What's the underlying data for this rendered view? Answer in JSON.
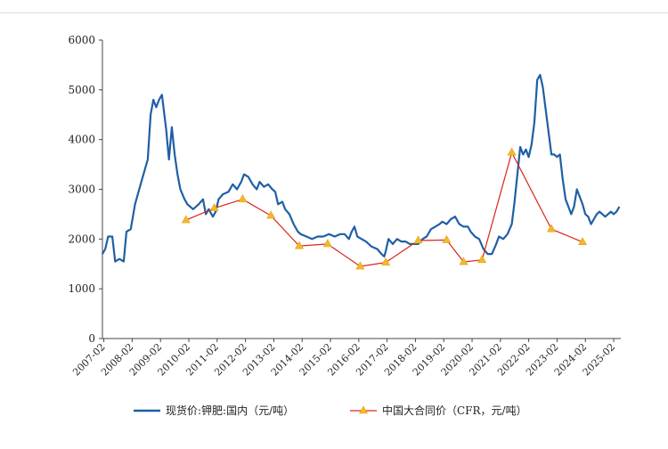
{
  "figure": {
    "title": ""
  },
  "chart_data": {
    "type": "line",
    "title": "",
    "xlabel": "",
    "ylabel": "",
    "ylim": [
      0,
      6000
    ],
    "yticks": [
      0,
      1000,
      2000,
      3000,
      4000,
      5000,
      6000
    ],
    "xtick_labels": [
      "2007-02",
      "2008-02",
      "2009-02",
      "2010-02",
      "2011-02",
      "2012-02",
      "2013-02",
      "2014-02",
      "2015-02",
      "2016-02",
      "2017-02",
      "2018-02",
      "2019-02",
      "2020-02",
      "2021-02",
      "2022-02",
      "2023-02",
      "2024-02",
      "2025-02"
    ],
    "grid": false,
    "legend_position": "bottom",
    "series": [
      {
        "name": "现货价:钾肥:国内（元/吨）",
        "color": "#1f5fa6",
        "marker": "none",
        "points": [
          [
            2007.0,
            1700
          ],
          [
            2007.1,
            1800
          ],
          [
            2007.2,
            2050
          ],
          [
            2007.35,
            2050
          ],
          [
            2007.45,
            1550
          ],
          [
            2007.6,
            1600
          ],
          [
            2007.75,
            1550
          ],
          [
            2007.85,
            2150
          ],
          [
            2008.0,
            2200
          ],
          [
            2008.15,
            2700
          ],
          [
            2008.3,
            3000
          ],
          [
            2008.45,
            3300
          ],
          [
            2008.6,
            3600
          ],
          [
            2008.7,
            4500
          ],
          [
            2008.8,
            4800
          ],
          [
            2008.9,
            4650
          ],
          [
            2009.0,
            4800
          ],
          [
            2009.1,
            4900
          ],
          [
            2009.25,
            4200
          ],
          [
            2009.35,
            3600
          ],
          [
            2009.45,
            4250
          ],
          [
            2009.55,
            3700
          ],
          [
            2009.65,
            3300
          ],
          [
            2009.75,
            3000
          ],
          [
            2009.9,
            2800
          ],
          [
            2010.0,
            2700
          ],
          [
            2010.2,
            2600
          ],
          [
            2010.4,
            2700
          ],
          [
            2010.55,
            2800
          ],
          [
            2010.65,
            2500
          ],
          [
            2010.75,
            2600
          ],
          [
            2010.9,
            2450
          ],
          [
            2011.0,
            2550
          ],
          [
            2011.1,
            2800
          ],
          [
            2011.25,
            2900
          ],
          [
            2011.45,
            2950
          ],
          [
            2011.6,
            3100
          ],
          [
            2011.75,
            3000
          ],
          [
            2011.9,
            3150
          ],
          [
            2012.0,
            3300
          ],
          [
            2012.15,
            3250
          ],
          [
            2012.3,
            3100
          ],
          [
            2012.45,
            3000
          ],
          [
            2012.55,
            3150
          ],
          [
            2012.7,
            3050
          ],
          [
            2012.85,
            3100
          ],
          [
            2013.0,
            3000
          ],
          [
            2013.1,
            2950
          ],
          [
            2013.2,
            2700
          ],
          [
            2013.35,
            2750
          ],
          [
            2013.45,
            2600
          ],
          [
            2013.6,
            2500
          ],
          [
            2013.75,
            2300
          ],
          [
            2013.9,
            2150
          ],
          [
            2014.0,
            2100
          ],
          [
            2014.2,
            2050
          ],
          [
            2014.4,
            2000
          ],
          [
            2014.6,
            2050
          ],
          [
            2014.8,
            2050
          ],
          [
            2015.0,
            2100
          ],
          [
            2015.2,
            2050
          ],
          [
            2015.4,
            2100
          ],
          [
            2015.55,
            2100
          ],
          [
            2015.7,
            2000
          ],
          [
            2015.8,
            2150
          ],
          [
            2015.9,
            2250
          ],
          [
            2016.0,
            2050
          ],
          [
            2016.15,
            2000
          ],
          [
            2016.3,
            1950
          ],
          [
            2016.5,
            1850
          ],
          [
            2016.7,
            1800
          ],
          [
            2016.85,
            1700
          ],
          [
            2016.95,
            1650
          ],
          [
            2017.0,
            1750
          ],
          [
            2017.1,
            2000
          ],
          [
            2017.25,
            1900
          ],
          [
            2017.4,
            2000
          ],
          [
            2017.55,
            1950
          ],
          [
            2017.7,
            1950
          ],
          [
            2017.85,
            1900
          ],
          [
            2018.0,
            1900
          ],
          [
            2018.15,
            1900
          ],
          [
            2018.3,
            2000
          ],
          [
            2018.45,
            2050
          ],
          [
            2018.6,
            2200
          ],
          [
            2018.75,
            2250
          ],
          [
            2018.9,
            2300
          ],
          [
            2019.0,
            2350
          ],
          [
            2019.15,
            2300
          ],
          [
            2019.3,
            2400
          ],
          [
            2019.45,
            2450
          ],
          [
            2019.6,
            2300
          ],
          [
            2019.75,
            2250
          ],
          [
            2019.9,
            2250
          ],
          [
            2020.0,
            2150
          ],
          [
            2020.15,
            2050
          ],
          [
            2020.3,
            2000
          ],
          [
            2020.45,
            1800
          ],
          [
            2020.6,
            1700
          ],
          [
            2020.75,
            1700
          ],
          [
            2020.9,
            1900
          ],
          [
            2021.0,
            2050
          ],
          [
            2021.15,
            2000
          ],
          [
            2021.3,
            2100
          ],
          [
            2021.45,
            2300
          ],
          [
            2021.55,
            2750
          ],
          [
            2021.65,
            3300
          ],
          [
            2021.75,
            3850
          ],
          [
            2021.85,
            3700
          ],
          [
            2021.95,
            3800
          ],
          [
            2022.05,
            3650
          ],
          [
            2022.15,
            3900
          ],
          [
            2022.25,
            4350
          ],
          [
            2022.35,
            5200
          ],
          [
            2022.45,
            5300
          ],
          [
            2022.55,
            5050
          ],
          [
            2022.65,
            4600
          ],
          [
            2022.75,
            4150
          ],
          [
            2022.85,
            3700
          ],
          [
            2022.95,
            3700
          ],
          [
            2023.05,
            3650
          ],
          [
            2023.15,
            3700
          ],
          [
            2023.25,
            3200
          ],
          [
            2023.35,
            2800
          ],
          [
            2023.45,
            2650
          ],
          [
            2023.55,
            2500
          ],
          [
            2023.65,
            2650
          ],
          [
            2023.75,
            3000
          ],
          [
            2023.85,
            2850
          ],
          [
            2023.95,
            2700
          ],
          [
            2024.05,
            2500
          ],
          [
            2024.15,
            2450
          ],
          [
            2024.25,
            2300
          ],
          [
            2024.35,
            2400
          ],
          [
            2024.45,
            2500
          ],
          [
            2024.55,
            2550
          ],
          [
            2024.65,
            2500
          ],
          [
            2024.75,
            2450
          ],
          [
            2024.85,
            2500
          ],
          [
            2024.95,
            2550
          ],
          [
            2025.05,
            2500
          ],
          [
            2025.15,
            2550
          ],
          [
            2025.25,
            2650
          ]
        ]
      },
      {
        "name": "中国大合同价（CFR，元/吨）",
        "color": "#d9261c",
        "marker": "triangle",
        "marker_color": "#f2b928",
        "points": [
          [
            2009.95,
            2380
          ],
          [
            2010.95,
            2620
          ],
          [
            2011.95,
            2800
          ],
          [
            2012.95,
            2470
          ],
          [
            2013.95,
            1860
          ],
          [
            2014.95,
            1900
          ],
          [
            2016.1,
            1450
          ],
          [
            2017.0,
            1530
          ],
          [
            2018.15,
            1970
          ],
          [
            2019.15,
            1980
          ],
          [
            2019.75,
            1540
          ],
          [
            2020.4,
            1580
          ],
          [
            2021.45,
            3740
          ],
          [
            2022.85,
            2200
          ],
          [
            2023.95,
            1940
          ]
        ]
      }
    ]
  }
}
